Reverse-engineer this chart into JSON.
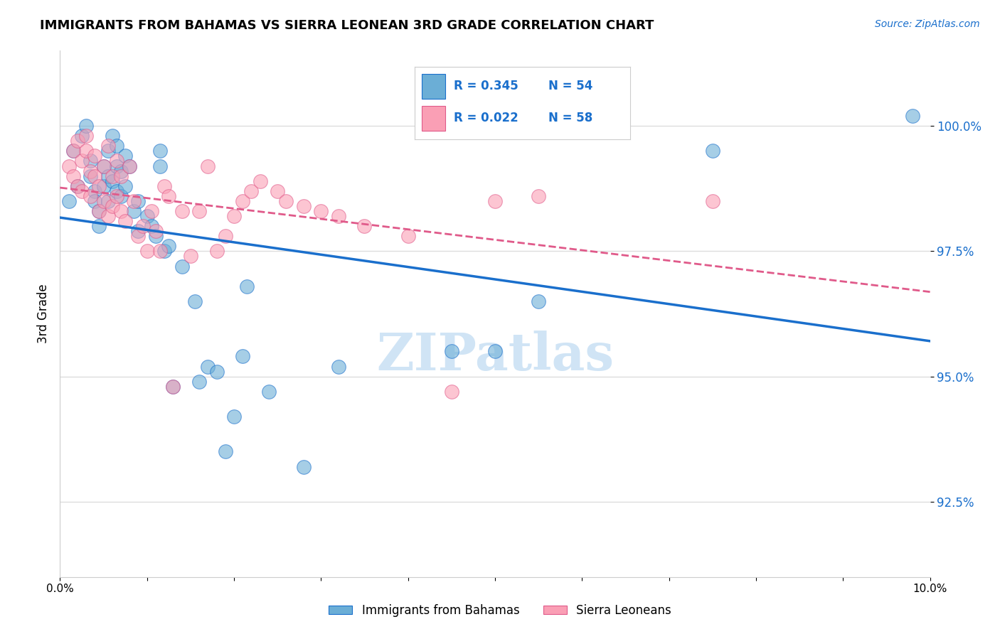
{
  "title": "IMMIGRANTS FROM BAHAMAS VS SIERRA LEONEAN 3RD GRADE CORRELATION CHART",
  "source": "Source: ZipAtlas.com",
  "ylabel": "3rd Grade",
  "xlim": [
    0.0,
    10.0
  ],
  "ylim": [
    91.0,
    101.5
  ],
  "yticks": [
    92.5,
    95.0,
    97.5,
    100.0
  ],
  "ytick_labels": [
    "92.5%",
    "95.0%",
    "97.5%",
    "100.0%"
  ],
  "legend_r_blue": "0.345",
  "legend_n_blue": "54",
  "legend_r_pink": "0.022",
  "legend_n_pink": "58",
  "blue_color": "#6baed6",
  "pink_color": "#fa9fb5",
  "trend_blue_color": "#1a6fcc",
  "trend_pink_color": "#e05a8a",
  "blue_x": [
    0.1,
    0.15,
    0.2,
    0.25,
    0.3,
    0.35,
    0.35,
    0.4,
    0.4,
    0.45,
    0.45,
    0.5,
    0.5,
    0.55,
    0.55,
    0.55,
    0.6,
    0.6,
    0.65,
    0.65,
    0.65,
    0.7,
    0.7,
    0.75,
    0.75,
    0.8,
    0.85,
    0.9,
    0.9,
    1.0,
    1.05,
    1.1,
    1.15,
    1.15,
    1.2,
    1.25,
    1.3,
    1.4,
    1.55,
    1.6,
    1.7,
    1.8,
    1.9,
    2.0,
    2.1,
    2.15,
    2.4,
    2.8,
    3.2,
    4.5,
    5.0,
    5.5,
    7.5,
    9.8
  ],
  "blue_y": [
    98.5,
    99.5,
    98.8,
    99.8,
    100.0,
    99.3,
    99.0,
    98.7,
    98.5,
    98.3,
    98.0,
    99.2,
    98.8,
    99.5,
    99.0,
    98.5,
    99.8,
    98.9,
    99.6,
    99.2,
    98.7,
    99.1,
    98.6,
    99.4,
    98.8,
    99.2,
    98.3,
    98.5,
    97.9,
    98.2,
    98.0,
    97.8,
    99.5,
    99.2,
    97.5,
    97.6,
    94.8,
    97.2,
    96.5,
    94.9,
    95.2,
    95.1,
    93.5,
    94.2,
    95.4,
    96.8,
    94.7,
    93.2,
    95.2,
    95.5,
    95.5,
    96.5,
    99.5,
    100.2
  ],
  "pink_x": [
    0.1,
    0.15,
    0.15,
    0.2,
    0.2,
    0.25,
    0.25,
    0.3,
    0.3,
    0.35,
    0.35,
    0.4,
    0.4,
    0.45,
    0.45,
    0.5,
    0.5,
    0.55,
    0.55,
    0.6,
    0.6,
    0.65,
    0.65,
    0.7,
    0.7,
    0.75,
    0.8,
    0.85,
    0.9,
    0.95,
    1.0,
    1.05,
    1.1,
    1.15,
    1.2,
    1.25,
    1.3,
    1.4,
    1.5,
    1.6,
    1.7,
    1.8,
    1.9,
    2.0,
    2.1,
    2.2,
    2.3,
    2.5,
    2.6,
    2.8,
    3.0,
    3.2,
    3.5,
    4.0,
    4.5,
    5.0,
    5.5,
    7.5
  ],
  "pink_y": [
    99.2,
    99.5,
    99.0,
    99.7,
    98.8,
    99.3,
    98.7,
    99.8,
    99.5,
    99.1,
    98.6,
    99.4,
    99.0,
    98.8,
    98.3,
    99.2,
    98.5,
    99.6,
    98.2,
    99.0,
    98.4,
    99.3,
    98.6,
    99.0,
    98.3,
    98.1,
    99.2,
    98.5,
    97.8,
    98.0,
    97.5,
    98.3,
    97.9,
    97.5,
    98.8,
    98.6,
    94.8,
    98.3,
    97.4,
    98.3,
    99.2,
    97.5,
    97.8,
    98.2,
    98.5,
    98.7,
    98.9,
    98.7,
    98.5,
    98.4,
    98.3,
    98.2,
    98.0,
    97.8,
    94.7,
    98.5,
    98.6,
    98.5
  ],
  "background_color": "#ffffff",
  "grid_color": "#dddddd",
  "watermark_text": "ZIPatlas",
  "watermark_color": "#d0e4f5",
  "label_blue": "Immigrants from Bahamas",
  "label_pink": "Sierra Leoneans"
}
